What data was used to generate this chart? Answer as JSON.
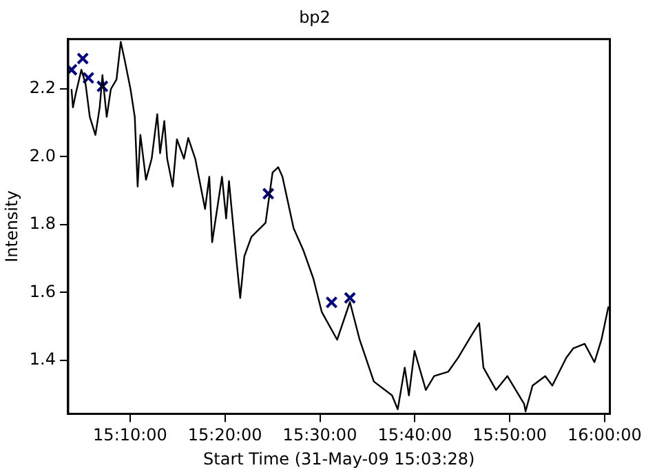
{
  "chart_data": {
    "type": "line",
    "title": "bp2",
    "xlabel": "Start Time (31-May-09 15:03:28)",
    "ylabel": "Intensity",
    "xlim": [
      15.0578,
      16.0093
    ],
    "ylim": [
      1.243,
      2.346
    ],
    "xticks": [
      {
        "value": 15.1667,
        "label": "15:10:00"
      },
      {
        "value": 15.3333,
        "label": "15:20:00"
      },
      {
        "value": 15.5,
        "label": "15:30:00"
      },
      {
        "value": 15.6667,
        "label": "15:40:00"
      },
      {
        "value": 15.8333,
        "label": "15:50:00"
      },
      {
        "value": 16,
        "label": "16:00:00"
      }
    ],
    "yticks": [
      {
        "value": 1.4,
        "label": "1.4"
      },
      {
        "value": 1.6,
        "label": "1.6"
      },
      {
        "value": 1.8,
        "label": "1.8"
      },
      {
        "value": 2.0,
        "label": "2.0"
      },
      {
        "value": 2.2,
        "label": "2.2"
      }
    ],
    "grid": false,
    "legend": false,
    "marker": "none",
    "line_style": "solid",
    "series": [
      {
        "color": "#000000",
        "x": [
          15.0637,
          15.0662,
          15.0712,
          15.081,
          15.0883,
          15.0958,
          15.1057,
          15.1132,
          15.118,
          15.1255,
          15.1328,
          15.1427,
          15.1502,
          15.1575,
          15.1673,
          15.1748,
          15.1798,
          15.1847,
          15.1945,
          15.2045,
          15.2143,
          15.2193,
          15.2267,
          15.2317,
          15.2415,
          15.2488,
          15.2612,
          15.2687,
          15.281,
          15.2983,
          15.3057,
          15.3107,
          15.328,
          15.3353,
          15.3403,
          15.3527,
          15.36,
          15.3673,
          15.3797,
          15.4045,
          15.4168,
          15.4267,
          15.4342,
          15.4538,
          15.4712,
          15.4885,
          15.5032,
          15.5303,
          15.5527,
          15.5698,
          15.5947,
          15.6267,
          15.6367,
          15.649,
          15.6563,
          15.6662,
          15.686,
          15.7007,
          15.7255,
          15.7427,
          15.7673,
          15.7798,
          15.7872,
          15.8093,
          15.8292,
          15.8587,
          15.8612,
          15.8735,
          15.8958,
          15.9082,
          15.9328,
          15.9452,
          15.965,
          15.9822,
          15.9945,
          16.0068
        ],
        "values": [
          2.199,
          2.145,
          2.186,
          2.256,
          2.215,
          2.117,
          2.064,
          2.145,
          2.24,
          2.117,
          2.199,
          2.227,
          2.338,
          2.281,
          2.199,
          2.117,
          1.912,
          2.064,
          1.932,
          1.994,
          2.125,
          2.01,
          2.105,
          1.994,
          1.912,
          2.051,
          1.994,
          2.055,
          1.994,
          1.846,
          1.941,
          1.748,
          1.941,
          1.818,
          1.928,
          1.707,
          1.584,
          1.707,
          1.764,
          1.805,
          1.953,
          1.969,
          1.941,
          1.789,
          1.723,
          1.641,
          1.543,
          1.461,
          1.572,
          1.461,
          1.338,
          1.297,
          1.256,
          1.379,
          1.297,
          1.428,
          1.313,
          1.354,
          1.367,
          1.408,
          1.477,
          1.51,
          1.379,
          1.313,
          1.354,
          1.272,
          1.25,
          1.326,
          1.354,
          1.326,
          1.408,
          1.436,
          1.449,
          1.395,
          1.461,
          1.559
        ]
      },
      {
        "type": "scatter",
        "color": "#000080",
        "marker": "cross",
        "x": [
          15.0637,
          15.0835,
          15.0933,
          15.118,
          15.4093,
          15.5205,
          15.5527
        ],
        "values": [
          2.256,
          2.289,
          2.232,
          2.207,
          1.891,
          1.571,
          1.584
        ]
      }
    ]
  }
}
